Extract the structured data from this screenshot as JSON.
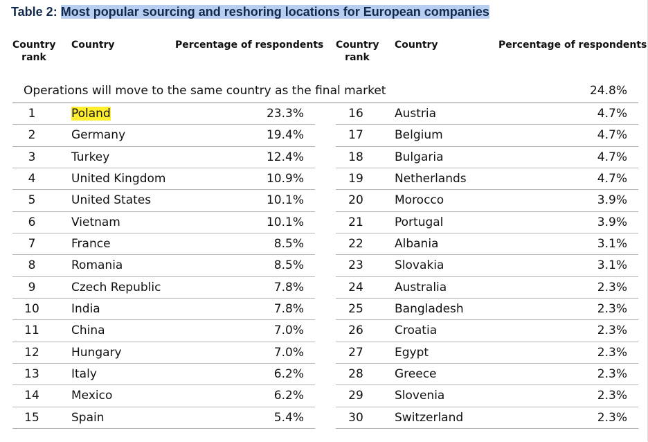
{
  "title": {
    "prefix": "Table 2:",
    "main": "Most popular sourcing and reshoring locations for European companies"
  },
  "headers": {
    "rank_line1": "Country",
    "rank_line2": "rank",
    "country": "Country",
    "percentage": "Percentage of respondents"
  },
  "final_market": {
    "label": "Operations will move to the same country as the final market",
    "value": "24.8%"
  },
  "highlight_color": "#ffee2e",
  "title_highlight_color": "#b8cdf2",
  "rows": [
    {
      "rank": "1",
      "country": "Poland",
      "pct": "23.3%",
      "highlighted": true
    },
    {
      "rank": "2",
      "country": "Germany",
      "pct": "19.4%"
    },
    {
      "rank": "3",
      "country": "Turkey",
      "pct": "12.4%"
    },
    {
      "rank": "4",
      "country": "United Kingdom",
      "pct": "10.9%"
    },
    {
      "rank": "5",
      "country": "United States",
      "pct": "10.1%"
    },
    {
      "rank": "6",
      "country": "Vietnam",
      "pct": "10.1%"
    },
    {
      "rank": "7",
      "country": "France",
      "pct": "8.5%"
    },
    {
      "rank": "8",
      "country": "Romania",
      "pct": "8.5%"
    },
    {
      "rank": "9",
      "country": "Czech Republic",
      "pct": "7.8%"
    },
    {
      "rank": "10",
      "country": "India",
      "pct": "7.8%"
    },
    {
      "rank": "11",
      "country": "China",
      "pct": "7.0%"
    },
    {
      "rank": "12",
      "country": "Hungary",
      "pct": "7.0%"
    },
    {
      "rank": "13",
      "country": "Italy",
      "pct": "6.2%"
    },
    {
      "rank": "14",
      "country": "Mexico",
      "pct": "6.2%"
    },
    {
      "rank": "15",
      "country": "Spain",
      "pct": "5.4%"
    },
    {
      "rank": "16",
      "country": "Austria",
      "pct": "4.7%"
    },
    {
      "rank": "17",
      "country": "Belgium",
      "pct": "4.7%"
    },
    {
      "rank": "18",
      "country": "Bulgaria",
      "pct": "4.7%"
    },
    {
      "rank": "19",
      "country": "Netherlands",
      "pct": "4.7%"
    },
    {
      "rank": "20",
      "country": "Morocco",
      "pct": "3.9%"
    },
    {
      "rank": "21",
      "country": "Portugal",
      "pct": "3.9%"
    },
    {
      "rank": "22",
      "country": "Albania",
      "pct": "3.1%"
    },
    {
      "rank": "23",
      "country": "Slovakia",
      "pct": "3.1%"
    },
    {
      "rank": "24",
      "country": "Australia",
      "pct": "2.3%"
    },
    {
      "rank": "25",
      "country": "Bangladesh",
      "pct": "2.3%"
    },
    {
      "rank": "26",
      "country": "Croatia",
      "pct": "2.3%"
    },
    {
      "rank": "27",
      "country": "Egypt",
      "pct": "2.3%"
    },
    {
      "rank": "28",
      "country": "Greece",
      "pct": "2.3%"
    },
    {
      "rank": "29",
      "country": "Slovenia",
      "pct": "2.3%"
    },
    {
      "rank": "30",
      "country": "Switzerland",
      "pct": "2.3%"
    }
  ]
}
